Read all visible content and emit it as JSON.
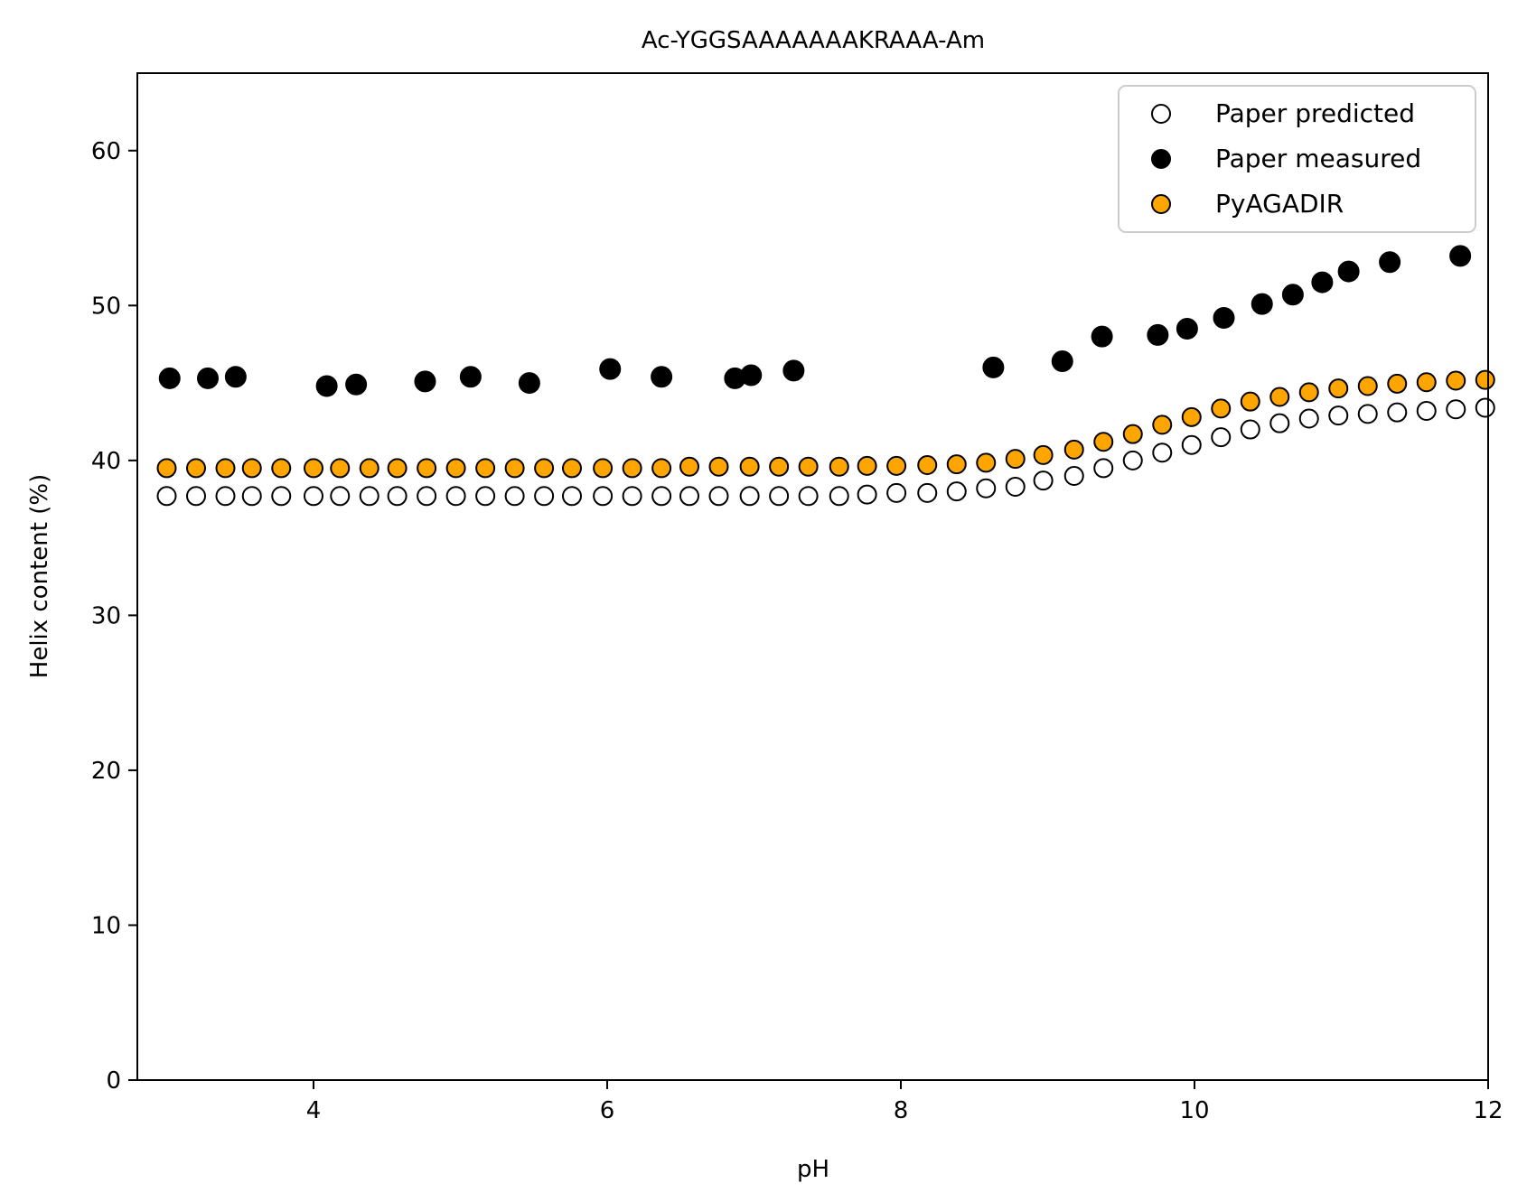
{
  "chart_data": {
    "type": "scatter",
    "title": "Ac-YGGSAAAAAAAKRAAA-Am",
    "xlabel": "pH",
    "ylabel": "Helix content (%)",
    "xlim": [
      2.8,
      12.0
    ],
    "ylim": [
      0,
      65
    ],
    "xticks": [
      4,
      6,
      8,
      10,
      12
    ],
    "yticks": [
      0,
      10,
      20,
      30,
      40,
      50,
      60
    ],
    "grid": false,
    "legend_position": "top-right",
    "series": [
      {
        "name": "Paper predicted",
        "marker": "open-circle",
        "fill": "#ffffff",
        "edge": "#000000",
        "points": [
          [
            3.0,
            37.7
          ],
          [
            3.2,
            37.7
          ],
          [
            3.4,
            37.7
          ],
          [
            3.58,
            37.7
          ],
          [
            3.78,
            37.7
          ],
          [
            4.0,
            37.7
          ],
          [
            4.18,
            37.7
          ],
          [
            4.38,
            37.7
          ],
          [
            4.57,
            37.7
          ],
          [
            4.77,
            37.7
          ],
          [
            4.97,
            37.7
          ],
          [
            5.17,
            37.7
          ],
          [
            5.37,
            37.7
          ],
          [
            5.57,
            37.7
          ],
          [
            5.76,
            37.7
          ],
          [
            5.97,
            37.7
          ],
          [
            6.17,
            37.7
          ],
          [
            6.37,
            37.7
          ],
          [
            6.56,
            37.7
          ],
          [
            6.76,
            37.7
          ],
          [
            6.97,
            37.7
          ],
          [
            7.17,
            37.7
          ],
          [
            7.37,
            37.7
          ],
          [
            7.58,
            37.7
          ],
          [
            7.77,
            37.8
          ],
          [
            7.97,
            37.9
          ],
          [
            8.18,
            37.9
          ],
          [
            8.38,
            38.0
          ],
          [
            8.58,
            38.2
          ],
          [
            8.78,
            38.3
          ],
          [
            8.97,
            38.7
          ],
          [
            9.18,
            39.0
          ],
          [
            9.38,
            39.5
          ],
          [
            9.58,
            40.0
          ],
          [
            9.78,
            40.5
          ],
          [
            9.98,
            41.0
          ],
          [
            10.18,
            41.5
          ],
          [
            10.38,
            42.0
          ],
          [
            10.58,
            42.4
          ],
          [
            10.78,
            42.7
          ],
          [
            10.98,
            42.9
          ],
          [
            11.18,
            43.0
          ],
          [
            11.38,
            43.1
          ],
          [
            11.58,
            43.2
          ],
          [
            11.78,
            43.3
          ],
          [
            11.98,
            43.4
          ]
        ]
      },
      {
        "name": "Paper measured",
        "marker": "filled-circle",
        "fill": "#000000",
        "edge": "#000000",
        "points": [
          [
            3.02,
            45.3
          ],
          [
            3.28,
            45.3
          ],
          [
            3.47,
            45.4
          ],
          [
            4.09,
            44.8
          ],
          [
            4.29,
            44.9
          ],
          [
            4.76,
            45.1
          ],
          [
            5.07,
            45.4
          ],
          [
            5.47,
            45.0
          ],
          [
            6.02,
            45.9
          ],
          [
            6.37,
            45.4
          ],
          [
            6.87,
            45.3
          ],
          [
            6.98,
            45.5
          ],
          [
            7.27,
            45.8
          ],
          [
            8.63,
            46.0
          ],
          [
            9.1,
            46.4
          ],
          [
            9.37,
            48.0
          ],
          [
            9.75,
            48.1
          ],
          [
            9.95,
            48.5
          ],
          [
            10.2,
            49.2
          ],
          [
            10.46,
            50.1
          ],
          [
            10.67,
            50.7
          ],
          [
            10.87,
            51.5
          ],
          [
            11.05,
            52.2
          ],
          [
            11.33,
            52.8
          ],
          [
            11.81,
            53.2
          ]
        ]
      },
      {
        "name": "PyAGADIR",
        "marker": "filled-circle",
        "fill": "#ffa500",
        "edge": "#000000",
        "points": [
          [
            3.0,
            39.5
          ],
          [
            3.2,
            39.5
          ],
          [
            3.4,
            39.5
          ],
          [
            3.58,
            39.5
          ],
          [
            3.78,
            39.5
          ],
          [
            4.0,
            39.5
          ],
          [
            4.18,
            39.5
          ],
          [
            4.38,
            39.5
          ],
          [
            4.57,
            39.5
          ],
          [
            4.77,
            39.5
          ],
          [
            4.97,
            39.5
          ],
          [
            5.17,
            39.5
          ],
          [
            5.37,
            39.5
          ],
          [
            5.57,
            39.5
          ],
          [
            5.76,
            39.5
          ],
          [
            5.97,
            39.5
          ],
          [
            6.17,
            39.5
          ],
          [
            6.37,
            39.5
          ],
          [
            6.56,
            39.6
          ],
          [
            6.76,
            39.6
          ],
          [
            6.97,
            39.6
          ],
          [
            7.17,
            39.6
          ],
          [
            7.37,
            39.6
          ],
          [
            7.58,
            39.6
          ],
          [
            7.77,
            39.65
          ],
          [
            7.97,
            39.65
          ],
          [
            8.18,
            39.7
          ],
          [
            8.38,
            39.75
          ],
          [
            8.58,
            39.85
          ],
          [
            8.78,
            40.1
          ],
          [
            8.97,
            40.35
          ],
          [
            9.18,
            40.7
          ],
          [
            9.38,
            41.2
          ],
          [
            9.58,
            41.7
          ],
          [
            9.78,
            42.3
          ],
          [
            9.98,
            42.8
          ],
          [
            10.18,
            43.35
          ],
          [
            10.38,
            43.8
          ],
          [
            10.58,
            44.1
          ],
          [
            10.78,
            44.4
          ],
          [
            10.98,
            44.65
          ],
          [
            11.18,
            44.8
          ],
          [
            11.38,
            44.95
          ],
          [
            11.58,
            45.05
          ],
          [
            11.78,
            45.15
          ],
          [
            11.98,
            45.2
          ]
        ]
      }
    ]
  }
}
